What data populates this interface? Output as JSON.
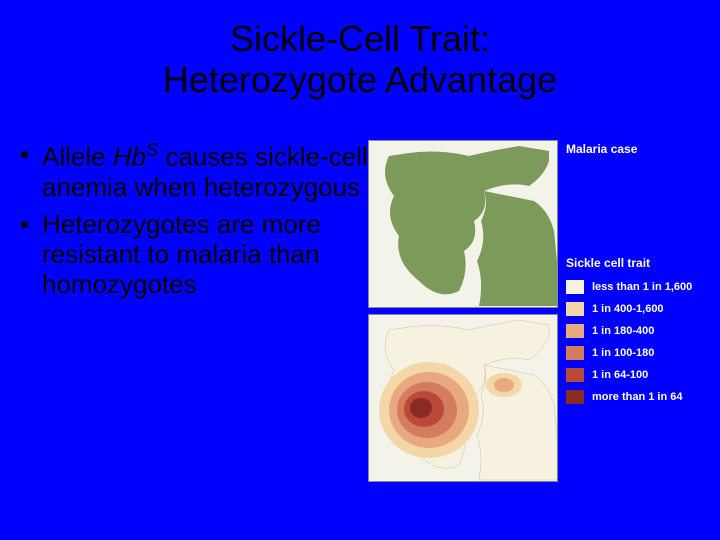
{
  "title_line1": "Sickle-Cell Trait:",
  "title_line2": "Heterozygote Advantage",
  "bullets": [
    {
      "pre": "Allele ",
      "allele": "Hb",
      "sup": "S",
      "post": " causes sickle-cell anemia when heterozygous"
    },
    {
      "text": "Heterozygotes are more resistant to malaria than homozygotes"
    }
  ],
  "maps": {
    "malaria": {
      "label": "Malaria case",
      "background": "#f4f3ea",
      "land_color": "#7c9a5a"
    },
    "sickle": {
      "label": "Sickle cell trait",
      "background": "#f4f3ea"
    }
  },
  "legend": [
    {
      "color": "#f7f2e0",
      "label": "less than 1 in 1,600"
    },
    {
      "color": "#f3d7a8",
      "label": "1 in 400-1,600"
    },
    {
      "color": "#e8a97e",
      "label": "1 in 180-400"
    },
    {
      "color": "#d47d5e",
      "label": "1 in 100-180"
    },
    {
      "color": "#b94a3a",
      "label": "1 in 64-100"
    },
    {
      "color": "#8a2a23",
      "label": "more than 1 in 64"
    }
  ],
  "colors": {
    "slide_bg": "#0000ff",
    "text": "#000000",
    "legend_text": "#ffffff"
  }
}
